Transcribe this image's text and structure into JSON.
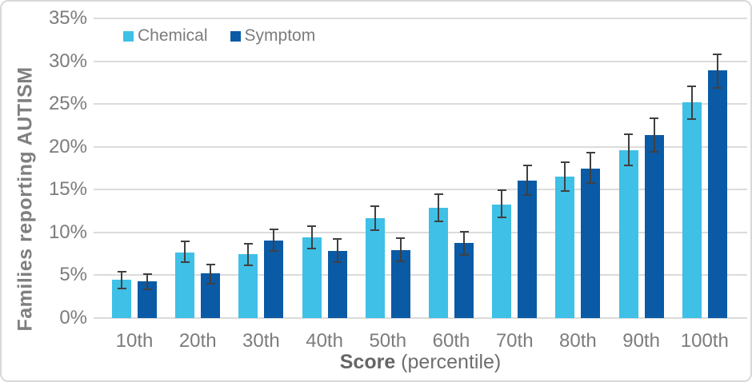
{
  "colors": {
    "chemical": "#3fc0e6",
    "symptom": "#0b5aa5",
    "gridline": "#dbdbdb",
    "error_bar": "#404040",
    "axis_text": "#7c7c7c"
  },
  "chart_data": {
    "type": "bar",
    "title": "",
    "ylabel": "Families reporting AUTISM",
    "xlabel": "Score (percentile)",
    "xlabel_parts": {
      "bold": "Score",
      "rest": " (percentile)"
    },
    "ylim": [
      0,
      35
    ],
    "ytick_step": 5,
    "ytick_labels": [
      "0%",
      "5%",
      "10%",
      "15%",
      "20%",
      "25%",
      "30%",
      "35%"
    ],
    "grid": true,
    "legend_position": "top-left-inside",
    "categories": [
      "10th",
      "20th",
      "30th",
      "40th",
      "50th",
      "60th",
      "70th",
      "80th",
      "90th",
      "100th"
    ],
    "series": [
      {
        "name": "Chemical",
        "color": "#3fc0e6",
        "values": [
          4.5,
          7.7,
          7.5,
          9.4,
          11.7,
          12.9,
          13.3,
          16.5,
          19.6,
          25.2
        ],
        "error_low": [
          3.5,
          6.5,
          6.2,
          8.1,
          10.3,
          11.3,
          11.8,
          14.8,
          17.8,
          23.2
        ],
        "error_high": [
          5.4,
          9.0,
          8.7,
          10.7,
          13.1,
          14.5,
          14.9,
          18.2,
          21.5,
          27.1
        ]
      },
      {
        "name": "Symptom",
        "color": "#0b5aa5",
        "values": [
          4.3,
          5.2,
          9.1,
          7.8,
          7.9,
          8.8,
          16.1,
          17.5,
          21.4,
          28.9
        ],
        "error_low": [
          3.4,
          4.0,
          7.8,
          6.5,
          6.6,
          7.4,
          14.4,
          15.8,
          19.4,
          26.9
        ],
        "error_high": [
          5.1,
          6.3,
          10.4,
          9.2,
          9.3,
          10.1,
          17.8,
          19.3,
          23.3,
          30.8
        ]
      }
    ]
  }
}
